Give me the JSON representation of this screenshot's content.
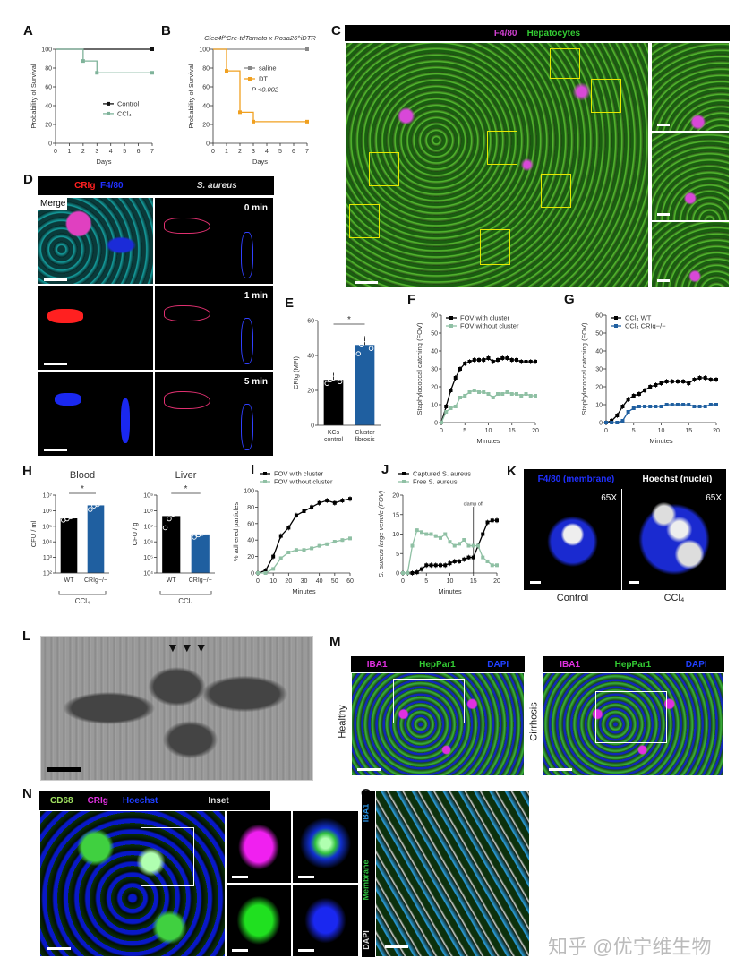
{
  "panels": {
    "A": "A",
    "B": "B",
    "C": "C",
    "D": "D",
    "E": "E",
    "F": "F",
    "G": "G",
    "H": "H",
    "I": "I",
    "J": "J",
    "K": "K",
    "L": "L",
    "M": "M",
    "N": "N",
    "O": "O"
  },
  "panel_c": {
    "header_left": "F4/80",
    "header_right": "Hepatocytes",
    "colors": {
      "f480": "#d040d0",
      "hepatocytes": "#33cc33",
      "roi_box": "#e8e800"
    }
  },
  "panel_d": {
    "header_crig": "CRIg",
    "header_f480": "F4/80",
    "header_saureus": "S. aureus",
    "merge_label": "Merge",
    "times": [
      "0 min",
      "1 min",
      "5 min"
    ],
    "colors": {
      "crig": "#ff2020",
      "f480": "#2030ff"
    }
  },
  "panel_k": {
    "header_left": "F4/80 (membrane)",
    "header_right": "Hoechst (nuclei)",
    "magnification": [
      "65X",
      "65X"
    ],
    "captions": [
      "Control",
      "CCl₄"
    ]
  },
  "panel_m": {
    "stains": [
      "IBA1",
      "HepPar1",
      "DAPI"
    ],
    "conditions": [
      "Healthy",
      "Cirrhosis"
    ],
    "colors": {
      "iba1": "#e030e0",
      "heppar1": "#33cc33",
      "dapi": "#2040ff"
    }
  },
  "panel_n": {
    "stains": [
      "CD68",
      "CRIg",
      "Hoechst"
    ],
    "inset_label": "Inset"
  },
  "panel_o": {
    "stains": [
      "IBA1",
      "Membrane",
      "DAPI"
    ]
  },
  "watermark": "知乎 @优宁维生物",
  "chart_data": [
    {
      "id": "A",
      "type": "line",
      "subtype": "survival-step",
      "title": "",
      "xlabel": "Days",
      "ylabel": "Probability of Survival",
      "xlim": [
        0,
        7
      ],
      "ylim": [
        0,
        100
      ],
      "xticks": [
        0,
        1,
        2,
        3,
        4,
        5,
        6,
        7
      ],
      "yticks": [
        0,
        20,
        40,
        60,
        80,
        100
      ],
      "legend": "right",
      "series": [
        {
          "name": "Control",
          "color": "#111111",
          "x": [
            0,
            7
          ],
          "y": [
            100,
            100
          ]
        },
        {
          "name": "CCl₄",
          "color": "#7fb39a",
          "x": [
            0,
            2,
            3,
            7
          ],
          "y": [
            100,
            87.5,
            75,
            75
          ]
        }
      ]
    },
    {
      "id": "B",
      "type": "line",
      "subtype": "survival-step",
      "title": "Clec4f^Cre-tdTomato x Rosa26^iDTR",
      "xlabel": "Days",
      "ylabel": "Probability of Survival",
      "xlim": [
        0,
        7
      ],
      "ylim": [
        0,
        100
      ],
      "xticks": [
        0,
        1,
        2,
        3,
        4,
        5,
        6,
        7
      ],
      "yticks": [
        0,
        20,
        40,
        60,
        80,
        100
      ],
      "legend": "right",
      "annotation": "P <0.002",
      "series": [
        {
          "name": "saline",
          "color": "#888888",
          "x": [
            0,
            7
          ],
          "y": [
            100,
            100
          ]
        },
        {
          "name": "DT",
          "color": "#f0a020",
          "x": [
            0,
            1,
            2,
            3,
            7
          ],
          "y": [
            100,
            77,
            33,
            23,
            23
          ]
        }
      ]
    },
    {
      "id": "E",
      "type": "bar",
      "xlabel": "",
      "ylabel": "CRIg (MFI)",
      "ylim": [
        0,
        60
      ],
      "yticks": [
        0,
        20,
        40,
        60
      ],
      "categories": [
        "KCs control",
        "Cluster fibrosis"
      ],
      "values": [
        26,
        46
      ],
      "errors": [
        4,
        5
      ],
      "colors": [
        "#000000",
        "#1f5fa0"
      ],
      "points": [
        [
          24,
          26,
          27,
          30,
          25
        ],
        [
          41,
          46,
          49,
          50,
          44
        ]
      ],
      "significance": "*"
    },
    {
      "id": "F",
      "type": "line",
      "xlabel": "Minutes",
      "ylabel": "Staphylococcal catching (FOV)",
      "xlim": [
        0,
        20
      ],
      "ylim": [
        0,
        60
      ],
      "xticks": [
        0,
        5,
        10,
        15,
        20
      ],
      "yticks": [
        0,
        10,
        20,
        30,
        40,
        50,
        60
      ],
      "legend": "top",
      "series": [
        {
          "name": "FOV with cluster",
          "color": "#000000",
          "x": [
            0,
            1,
            2,
            3,
            4,
            5,
            6,
            7,
            8,
            9,
            10,
            11,
            12,
            13,
            14,
            15,
            16,
            17,
            18,
            19,
            20
          ],
          "y": [
            0,
            9,
            18,
            25,
            30,
            33,
            34,
            35,
            35,
            35,
            36,
            34,
            35,
            36,
            36,
            35,
            35,
            34,
            34,
            34,
            34
          ]
        },
        {
          "name": "FOV without cluster",
          "color": "#8fc0a4",
          "x": [
            0,
            1,
            2,
            3,
            4,
            5,
            6,
            7,
            8,
            9,
            10,
            11,
            12,
            13,
            14,
            15,
            16,
            17,
            18,
            19,
            20
          ],
          "y": [
            0,
            6,
            8,
            9,
            14,
            15,
            17,
            18,
            17,
            17,
            16,
            14,
            16,
            16,
            17,
            16,
            16,
            15,
            16,
            15,
            15
          ]
        }
      ]
    },
    {
      "id": "G",
      "type": "line",
      "xlabel": "Minutes",
      "ylabel": "Staphylococcal catching (FOV)",
      "xlim": [
        0,
        20
      ],
      "ylim": [
        0,
        60
      ],
      "xticks": [
        0,
        5,
        10,
        15,
        20
      ],
      "yticks": [
        0,
        10,
        20,
        30,
        40,
        50,
        60
      ],
      "legend": "top",
      "series": [
        {
          "name": "CCl₄ WT",
          "color": "#000000",
          "x": [
            0,
            1,
            2,
            3,
            4,
            5,
            6,
            7,
            8,
            9,
            10,
            11,
            12,
            13,
            14,
            15,
            16,
            17,
            18,
            19,
            20
          ],
          "y": [
            0,
            1,
            4,
            9,
            13,
            15,
            16,
            18,
            20,
            21,
            22,
            23,
            23,
            23,
            23,
            22,
            24,
            25,
            25,
            24,
            24
          ]
        },
        {
          "name": "CCl₄ CRIg−/−",
          "color": "#1f5fa0",
          "x": [
            0,
            1,
            2,
            3,
            4,
            5,
            6,
            7,
            8,
            9,
            10,
            11,
            12,
            13,
            14,
            15,
            16,
            17,
            18,
            19,
            20
          ],
          "y": [
            0,
            0,
            0,
            1,
            6,
            8,
            9,
            9,
            9,
            9,
            9,
            10,
            10,
            10,
            10,
            10,
            9,
            9,
            9,
            10,
            10
          ]
        }
      ]
    },
    {
      "id": "H-blood",
      "type": "bar",
      "title": "Blood",
      "ylabel": "CFU / ml",
      "yscale": "log",
      "ylim": [
        100,
        10000000
      ],
      "yticks": [
        100,
        1000,
        10000,
        100000,
        1000000,
        10000000
      ],
      "ytick_labels": [
        "10²",
        "10³",
        "10⁴",
        "10⁵",
        "10⁶",
        "10⁷"
      ],
      "categories": [
        "WT",
        "CRIg−/−"
      ],
      "group_label": "CCl₄",
      "values": [
        320000,
        2200000
      ],
      "colors": [
        "#000000",
        "#1f5fa0"
      ],
      "points": [
        [
          250000,
          300000,
          400000,
          450000
        ],
        [
          1200000,
          2000000,
          2500000,
          4000000
        ]
      ],
      "significance": "*"
    },
    {
      "id": "H-liver",
      "type": "bar",
      "title": "Liver",
      "ylabel": "CFU / g",
      "yscale": "log",
      "ylim": [
        10000,
        1000000000
      ],
      "yticks": [
        10000,
        100000,
        1000000,
        10000000,
        100000000,
        1000000000
      ],
      "ytick_labels": [
        "10⁴",
        "10⁵",
        "10⁶",
        "10⁷",
        "10⁸",
        "10⁹"
      ],
      "categories": [
        "WT",
        "CRIg−/−"
      ],
      "group_label": "CCl₄",
      "values": [
        45000000,
        3000000
      ],
      "colors": [
        "#000000",
        "#1f5fa0"
      ],
      "points": [
        [
          8000000,
          30000000,
          60000000,
          80000000
        ],
        [
          2000000,
          2800000,
          3500000,
          4500000
        ]
      ],
      "significance": "*"
    },
    {
      "id": "I",
      "type": "line",
      "xlabel": "Minutes",
      "ylabel": "% adhered particles",
      "xlim": [
        0,
        60
      ],
      "ylim": [
        0,
        100
      ],
      "xticks": [
        0,
        10,
        20,
        30,
        40,
        50,
        60
      ],
      "yticks": [
        0,
        20,
        40,
        60,
        80,
        100
      ],
      "legend": "top",
      "series": [
        {
          "name": "FOV with cluster",
          "color": "#000000",
          "x": [
            0,
            5,
            10,
            15,
            20,
            25,
            30,
            35,
            40,
            45,
            50,
            55,
            60
          ],
          "y": [
            0,
            3,
            20,
            45,
            55,
            70,
            75,
            80,
            85,
            88,
            85,
            88,
            90
          ]
        },
        {
          "name": "FOV without cluster",
          "color": "#8fc0a4",
          "x": [
            0,
            5,
            10,
            15,
            20,
            25,
            30,
            35,
            40,
            45,
            50,
            55,
            60
          ],
          "y": [
            0,
            0,
            5,
            18,
            25,
            28,
            28,
            30,
            33,
            35,
            38,
            40,
            42
          ]
        }
      ]
    },
    {
      "id": "J",
      "type": "line",
      "xlabel": "Minutes",
      "ylabel": "S. aureus large venule (FOV)",
      "xlim": [
        0,
        20
      ],
      "ylim": [
        0,
        20
      ],
      "xticks": [
        0,
        5,
        10,
        15,
        20
      ],
      "yticks": [
        0,
        5,
        10,
        15,
        20
      ],
      "legend": "top",
      "vline": {
        "x": 15,
        "label": "clamp off"
      },
      "series": [
        {
          "name": "Captured S. aureus",
          "color": "#000000",
          "x": [
            0,
            1,
            2,
            3,
            4,
            5,
            6,
            7,
            8,
            9,
            10,
            11,
            12,
            13,
            14,
            15,
            16,
            17,
            18,
            19,
            20
          ],
          "y": [
            0,
            0,
            0,
            0.2,
            1,
            2,
            2,
            2,
            2,
            2,
            2.5,
            3,
            3,
            3.5,
            4,
            4,
            7,
            10,
            13,
            13.5,
            13.5
          ]
        },
        {
          "name": "Free S. aureus",
          "color": "#8fc0a4",
          "x": [
            0,
            1,
            2,
            3,
            4,
            5,
            6,
            7,
            8,
            9,
            10,
            11,
            12,
            13,
            14,
            15,
            16,
            17,
            18,
            19,
            20
          ],
          "y": [
            0,
            0,
            7,
            11,
            10.5,
            10,
            10,
            9.5,
            9,
            10,
            8,
            7,
            7.5,
            8.5,
            7,
            7,
            7,
            4,
            3,
            2,
            2
          ]
        }
      ]
    }
  ]
}
